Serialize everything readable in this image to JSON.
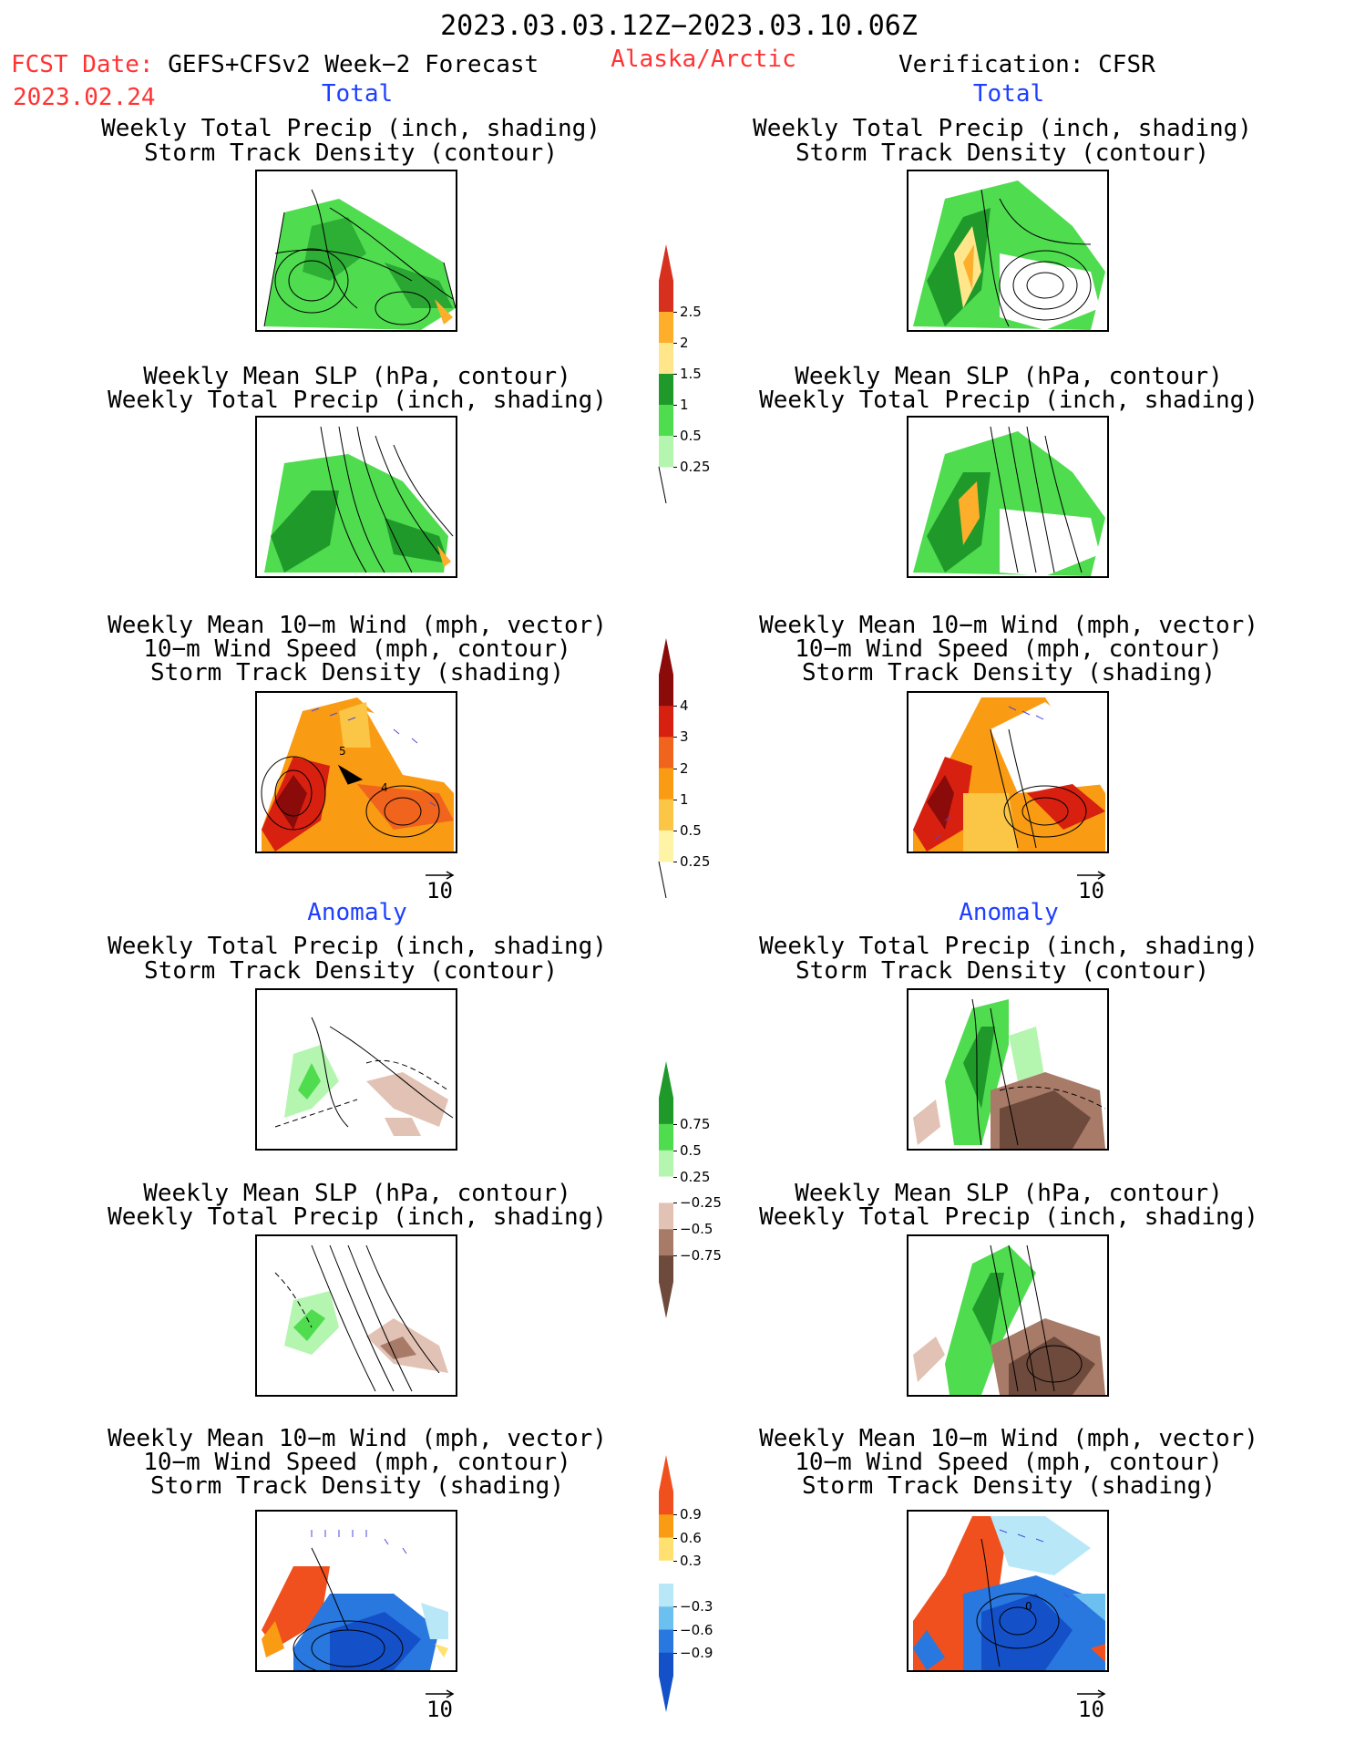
{
  "header": {
    "period": "2023.03.03.12Z−2023.03.10.06Z",
    "fcst_label": "FCST Date:",
    "fcst_model": "GEFS+CFSv2 Week−2 Forecast",
    "fcst_date": "2023.02.24",
    "region": "Alaska/Arctic",
    "verification": "Verification: CFSR"
  },
  "sections": {
    "total": "Total",
    "anomaly": "Anomaly"
  },
  "titles": {
    "precip_track": [
      "Weekly Total Precip (inch, shading)",
      "Storm Track Density (contour)"
    ],
    "slp_precip": [
      "Weekly Mean SLP (hPa, contour)",
      "Weekly Total Precip (inch, shading)"
    ],
    "wind_track": [
      "Weekly Mean 10−m Wind (mph, vector)",
      "10−m Wind Speed (mph, contour)",
      "Storm Track Density (shading)"
    ]
  },
  "vector_ref": "10",
  "colorbars": {
    "precip_total": {
      "labels": [
        "2.5",
        "2",
        "1.5",
        "1",
        "0.5",
        "0.25"
      ],
      "colors": [
        "#d7301f",
        "#fdae2b",
        "#ffe68a",
        "#1f9a2a",
        "#4fdc4f",
        "#b4f5b0"
      ]
    },
    "track_total": {
      "labels": [
        "4",
        "3",
        "2",
        "1",
        "0.5",
        "0.25"
      ],
      "colors": [
        "#8b0a0a",
        "#d72010",
        "#f0641e",
        "#fa9b14",
        "#fbc545",
        "#fff3a6"
      ]
    },
    "precip_anom": {
      "labels": [
        "0.75",
        "0.5",
        "0.25",
        "−0.25",
        "−0.5",
        "−0.75"
      ],
      "colors": [
        "#1f9a2a",
        "#4fdc4f",
        "#b4f5b0",
        "#ffffff",
        "#e2c2b4",
        "#a87a68",
        "#6e4a3c"
      ]
    },
    "track_anom": {
      "labels": [
        "0.9",
        "0.6",
        "0.3",
        "−0.3",
        "−0.6",
        "−0.9"
      ],
      "colors": [
        "#f0501e",
        "#fa9b14",
        "#ffe070",
        "#ffffff",
        "#b8e8f8",
        "#6cc0f0",
        "#2878e0",
        "#1450c8"
      ]
    }
  },
  "panel_annotations": {
    "left_wind_total_labels": [
      "5",
      "4"
    ],
    "right_wind_anom_label": "0"
  }
}
